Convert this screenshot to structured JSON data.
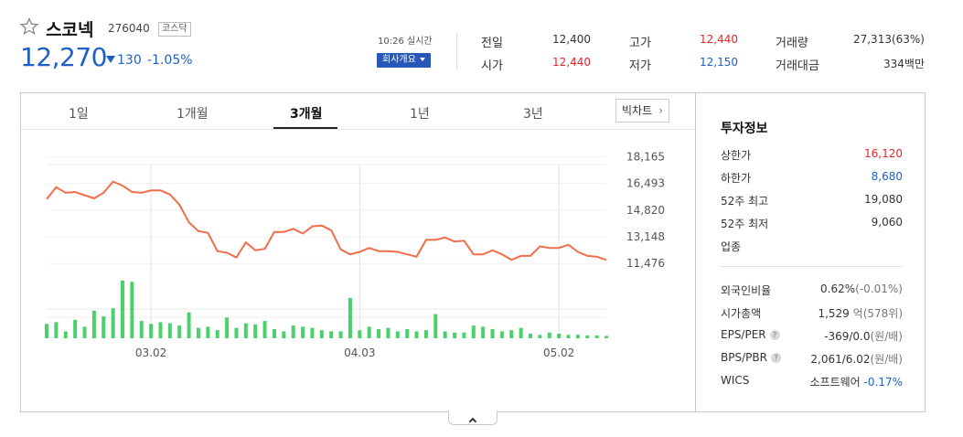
{
  "header": {
    "name": "스코넥",
    "code": "276040",
    "market": "코스닥",
    "price": "12,270",
    "change": "130",
    "change_rate": "-1.05%",
    "time_label": "10:26 실시간",
    "company_button": "회사개요"
  },
  "quote": {
    "prev_close_label": "전일",
    "prev_close": "12,400",
    "open_label": "시가",
    "open": "12,440",
    "high_label": "고가",
    "high": "12,440",
    "low_label": "저가",
    "low": "12,150",
    "volume_label": "거래량",
    "volume": "27,313(63%)",
    "amount_label": "거래대금",
    "amount": "334백만"
  },
  "tabs": [
    "1일",
    "1개월",
    "3개월",
    "1년",
    "3년"
  ],
  "active_tab": "3개월",
  "big_chart_label": "빅차트",
  "chart_data": {
    "type": "line",
    "title": "",
    "y_ticks": [
      "18,165",
      "16,493",
      "14,820",
      "13,148",
      "11,476"
    ],
    "x_ticks": [
      "03.02",
      "04.03",
      "05.02"
    ],
    "ylim": [
      10800,
      18700
    ],
    "price_series": [
      15500,
      16250,
      15900,
      15950,
      15750,
      15550,
      15900,
      16600,
      16350,
      15950,
      15900,
      16050,
      16050,
      15800,
      15150,
      14050,
      13500,
      13400,
      12250,
      12150,
      11850,
      12800,
      12300,
      12400,
      13450,
      13450,
      13650,
      13350,
      13800,
      13850,
      13550,
      12350,
      12050,
      12200,
      12450,
      12250,
      12250,
      12200,
      12050,
      11900,
      12950,
      12950,
      13100,
      12850,
      12900,
      12050,
      12050,
      12300,
      12050,
      11700,
      11950,
      11950,
      12550,
      12450,
      12450,
      12650,
      12200,
      11950,
      11900,
      11700
    ],
    "volume_series": [
      0.25,
      0.28,
      0.12,
      0.32,
      0.2,
      0.48,
      0.38,
      0.52,
      1.0,
      0.98,
      0.3,
      0.25,
      0.28,
      0.26,
      0.22,
      0.45,
      0.18,
      0.2,
      0.14,
      0.36,
      0.18,
      0.26,
      0.24,
      0.3,
      0.16,
      0.12,
      0.22,
      0.2,
      0.18,
      0.14,
      0.12,
      0.12,
      0.7,
      0.14,
      0.2,
      0.16,
      0.18,
      0.12,
      0.16,
      0.12,
      0.14,
      0.42,
      0.12,
      0.1,
      0.1,
      0.22,
      0.2,
      0.16,
      0.12,
      0.14,
      0.18,
      0.08,
      0.06,
      0.1,
      0.08,
      0.06,
      0.06,
      0.05,
      0.05,
      0.04
    ],
    "line_color": "#f26d4a",
    "volume_color": "#4cd06a"
  },
  "info": {
    "title": "투자정보",
    "rows_top": [
      {
        "label": "상한가",
        "value": "16,120",
        "color": "red"
      },
      {
        "label": "하한가",
        "value": "8,680",
        "color": "blue"
      },
      {
        "label": "52주 최고",
        "value": "19,080",
        "color": "dark"
      },
      {
        "label": "52주 최저",
        "value": "9,060",
        "color": "dark"
      },
      {
        "label": "업종",
        "value": "",
        "color": "dark"
      }
    ],
    "foreign_label": "외국인비율",
    "foreign_value": "0.62%",
    "foreign_sub": "(-0.01%)",
    "mcap_label": "시가총액",
    "mcap_value": "1,529",
    "mcap_unit": "억",
    "mcap_sub": "(578위)",
    "eps_label": "EPS/PER",
    "eps_value": "-369/0.0",
    "eps_sub": "(원/배)",
    "bps_label": "BPS/PBR",
    "bps_value": "2,061/6.02",
    "bps_sub": "(원/배)",
    "wics_label": "WICS",
    "wics_value": "소프트웨어",
    "wics_change": "-0.17%"
  }
}
